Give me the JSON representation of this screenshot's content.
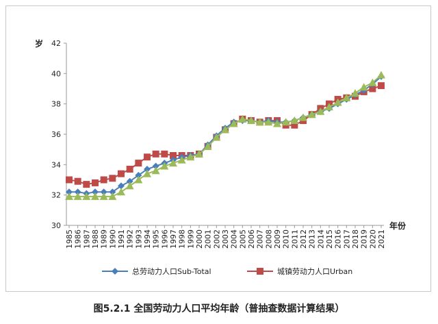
{
  "caption": "图5.2.1 全国劳动力人口平均年龄（普抽查数据计算结果）",
  "chart_data": {
    "type": "line",
    "title": "",
    "xlabel": "年份",
    "ylabel": "岁",
    "ylim": [
      30,
      42
    ],
    "yticks": [
      30,
      32,
      34,
      36,
      38,
      40,
      42
    ],
    "grid": false,
    "legend_position": "bottom",
    "categories": [
      "1985",
      "1986",
      "1987",
      "1988",
      "1989",
      "1990",
      "1991",
      "1992",
      "1993",
      "1994",
      "1995",
      "1996",
      "1997",
      "1998",
      "1999",
      "2000",
      "2001",
      "2002",
      "2003",
      "2004",
      "2005",
      "2006",
      "2007",
      "2008",
      "2009",
      "2010",
      "2011",
      "2012",
      "2013",
      "2014",
      "2015",
      "2016",
      "2017",
      "2018",
      "2019",
      "2020",
      "2021"
    ],
    "series": [
      {
        "name": "总劳动力人口Sub-Total",
        "color": "#4a7ebb",
        "marker": "diamond",
        "values": [
          32.2,
          32.2,
          32.1,
          32.2,
          32.2,
          32.2,
          32.6,
          32.9,
          33.3,
          33.7,
          33.9,
          34.1,
          34.3,
          34.5,
          34.6,
          34.7,
          35.3,
          35.9,
          36.4,
          36.8,
          36.9,
          36.9,
          36.8,
          36.9,
          36.8,
          36.8,
          36.9,
          37.1,
          37.3,
          37.5,
          37.7,
          38.0,
          38.3,
          38.6,
          38.9,
          39.3,
          39.8
        ]
      },
      {
        "name": "城镇劳动力人口Urban",
        "color": "#be4b48",
        "marker": "square",
        "values": [
          33.0,
          32.9,
          32.7,
          32.8,
          33.0,
          33.1,
          33.4,
          33.7,
          34.1,
          34.5,
          34.7,
          34.7,
          34.6,
          34.6,
          34.6,
          34.7,
          35.2,
          35.8,
          36.3,
          36.7,
          37.0,
          36.9,
          36.8,
          36.9,
          36.9,
          36.6,
          36.6,
          36.9,
          37.3,
          37.7,
          38.0,
          38.3,
          38.4,
          38.5,
          38.8,
          39.0,
          39.2
        ]
      },
      {
        "name": "",
        "color": "#9bbb59",
        "marker": "triangle",
        "values": [
          31.9,
          31.9,
          31.9,
          31.9,
          31.9,
          31.9,
          32.2,
          32.6,
          33.0,
          33.4,
          33.6,
          33.9,
          34.1,
          34.3,
          34.5,
          34.7,
          35.2,
          35.8,
          36.3,
          36.7,
          37.0,
          36.9,
          36.8,
          36.8,
          36.7,
          36.8,
          36.9,
          37.1,
          37.3,
          37.5,
          37.8,
          38.1,
          38.4,
          38.7,
          39.1,
          39.4,
          39.9
        ]
      }
    ]
  }
}
